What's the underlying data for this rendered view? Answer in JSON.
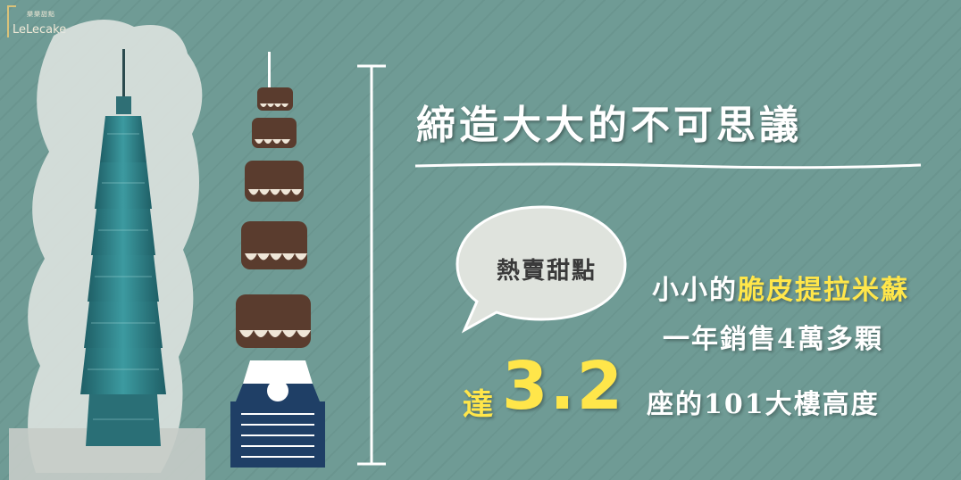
{
  "brand": {
    "name": "LeLecake",
    "small_label": "樂樂甜點",
    "logo_color": "#d9c27a"
  },
  "title": "締造大大的不可思議",
  "bubble_text": "熱賣甜點",
  "lines": {
    "line1_prefix": "小小的",
    "line1_highlight": "脆皮提拉米蘇",
    "line2": "一年銷售4萬多顆",
    "line3_prefix": "達",
    "line3_number": "3.2",
    "line3_suffix": "座的101大樓高度"
  },
  "colors": {
    "background": "#6f9b95",
    "highlight": "#ffe64a",
    "tower": "#2f7f86",
    "cake": "#5a3c2e",
    "base": "#1f3f66"
  }
}
